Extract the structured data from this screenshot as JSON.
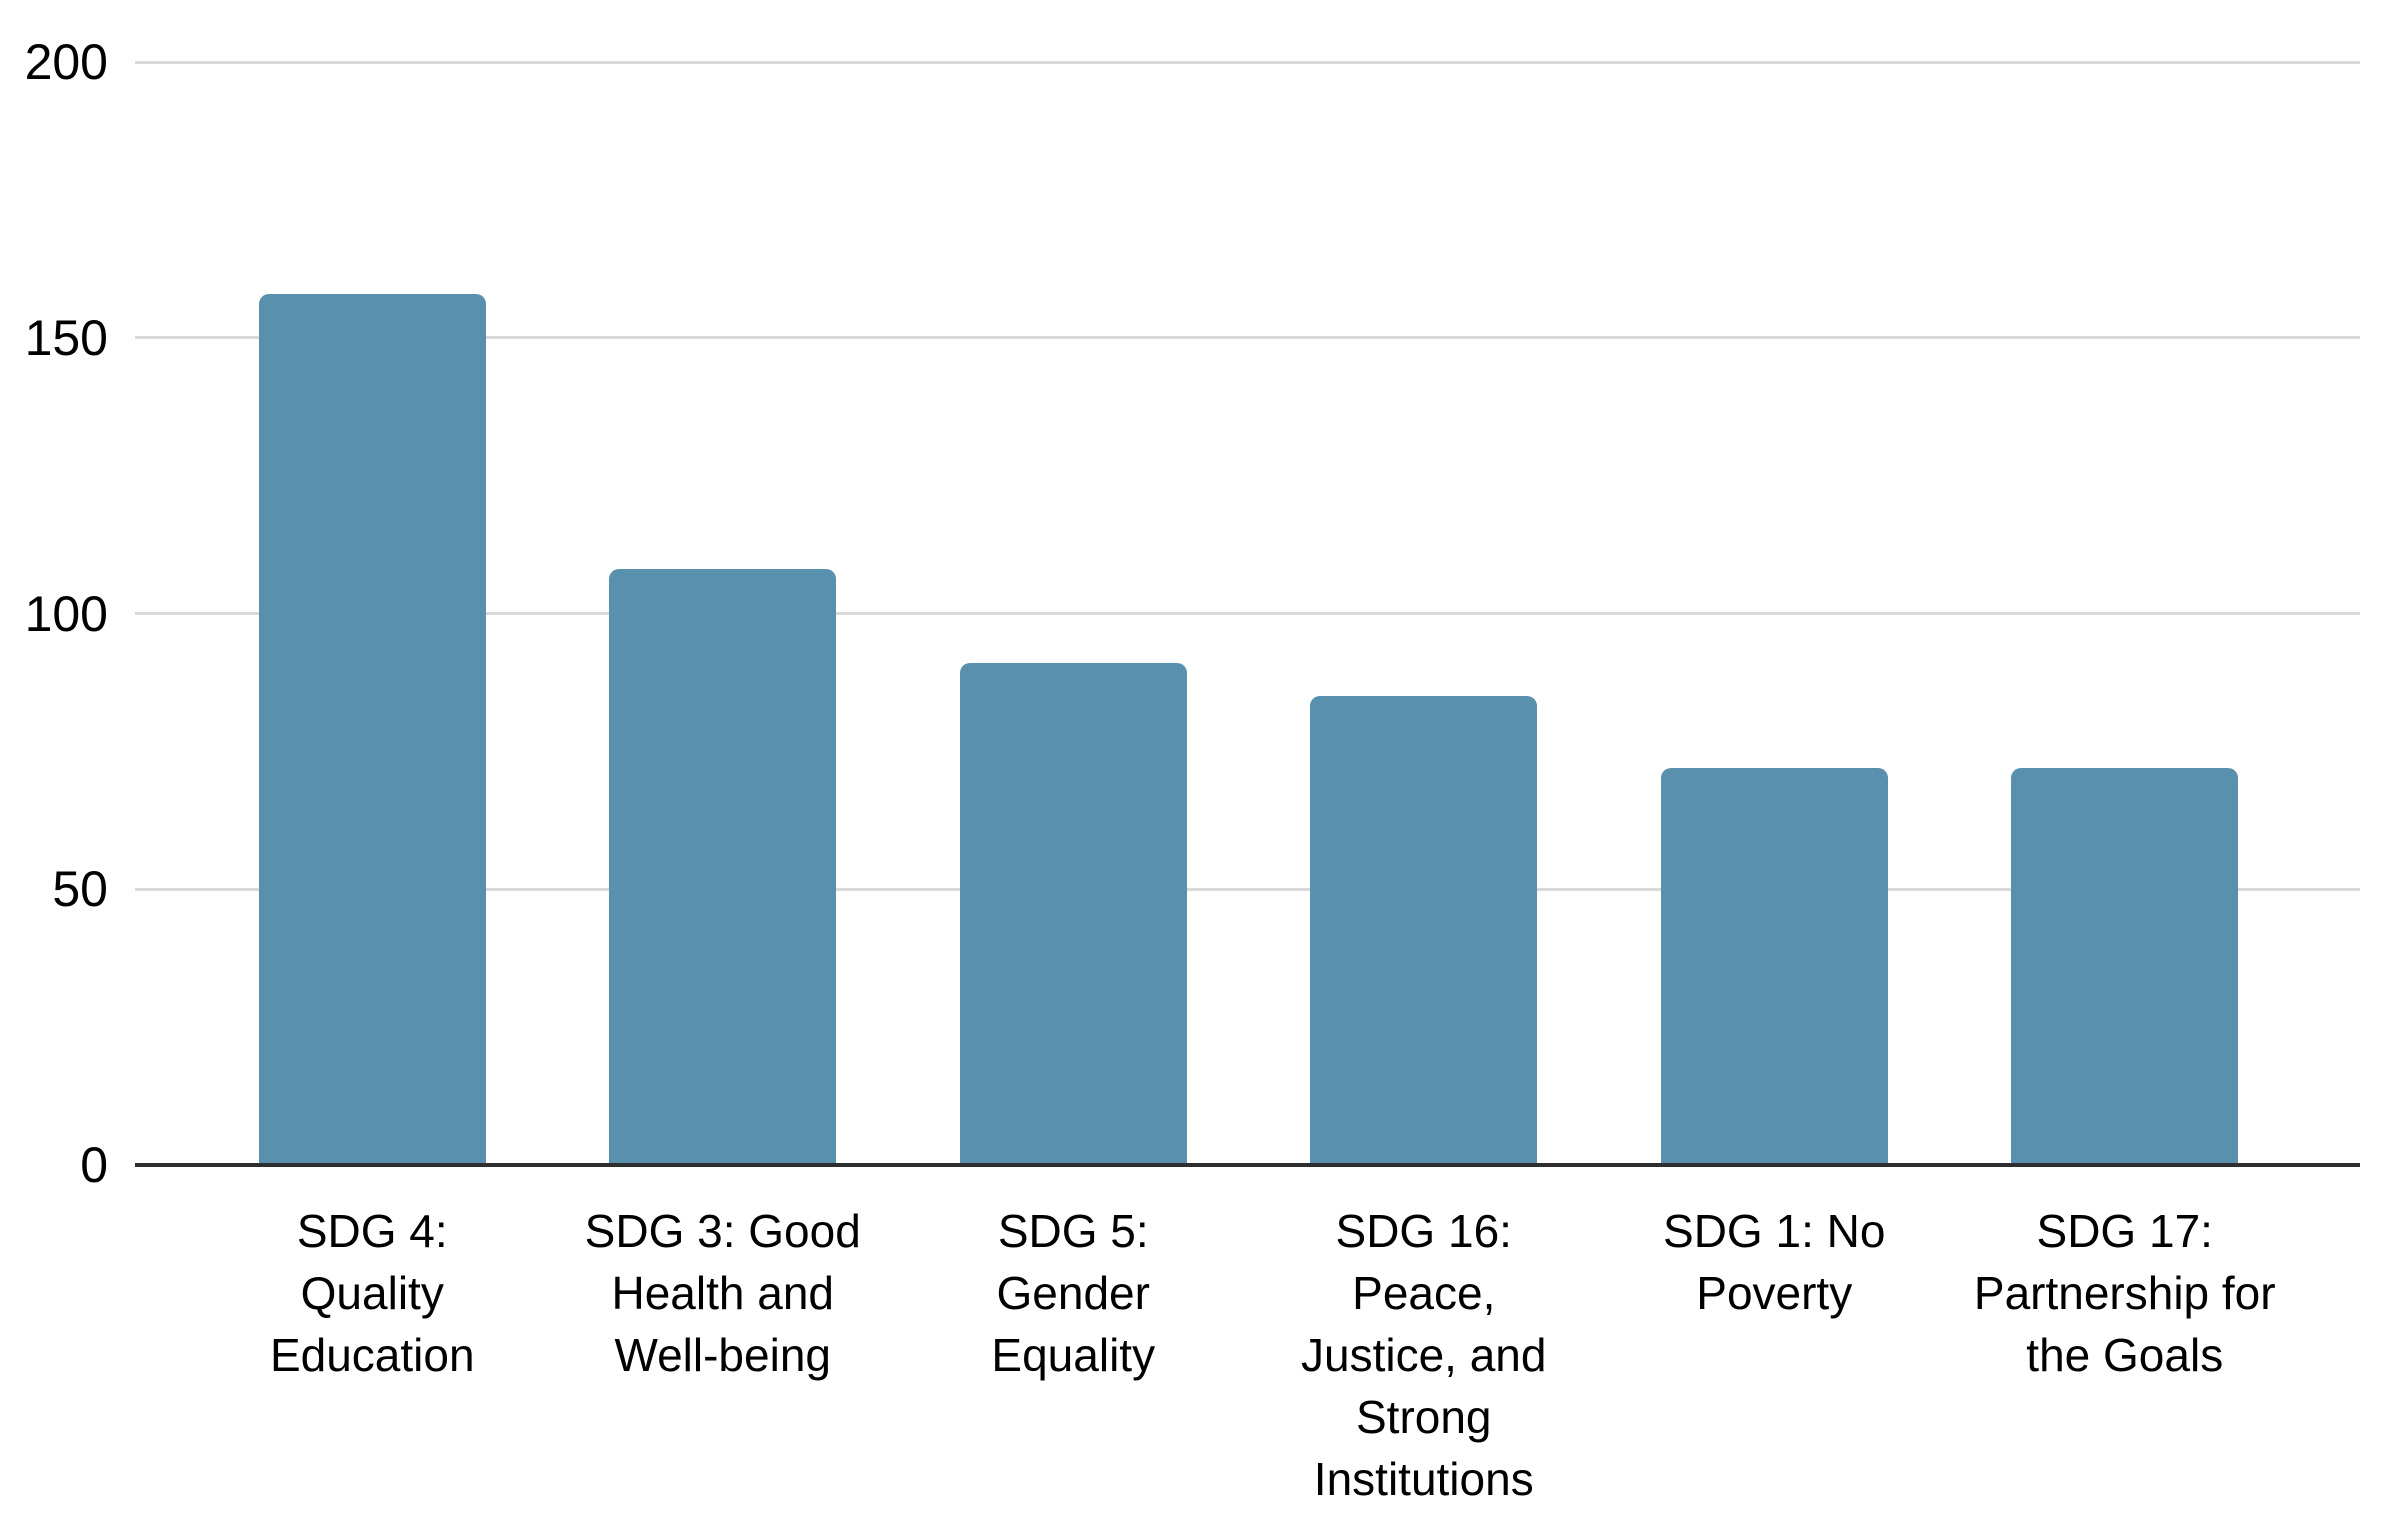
{
  "chart_data": {
    "type": "bar",
    "title": "",
    "xlabel": "",
    "ylabel": "",
    "categories": [
      "SDG 4: Quality Education",
      "SDG 3: Good Health and Well-being",
      "SDG 5: Gender Equality",
      "SDG 16: Peace, Justice, and Strong Institutions",
      "SDG 1: No Poverty",
      "SDG 17: Partnership for the Goals"
    ],
    "category_lines": [
      [
        "SDG 4:",
        "Quality",
        "Education"
      ],
      [
        "SDG 3: Good",
        "Health and",
        "Well-being"
      ],
      [
        "SDG 5:",
        "Gender",
        "Equality"
      ],
      [
        "SDG 16:",
        "Peace,",
        "Justice, and",
        "Strong",
        "Institutions"
      ],
      [
        "SDG 1: No",
        "Poverty"
      ],
      [
        "SDG 17:",
        "Partnership for",
        "the Goals"
      ]
    ],
    "values": [
      158,
      108,
      91,
      85,
      72,
      72
    ],
    "ylim": [
      0,
      200
    ],
    "yticks": [
      0,
      50,
      100,
      150,
      200
    ],
    "grid": true,
    "legend": "none",
    "colors": {
      "bar": "#5890ae",
      "gridline": "#d9d9d9",
      "axis_line": "#2e2e2e",
      "text": "#000000",
      "background": "#ffffff"
    }
  }
}
